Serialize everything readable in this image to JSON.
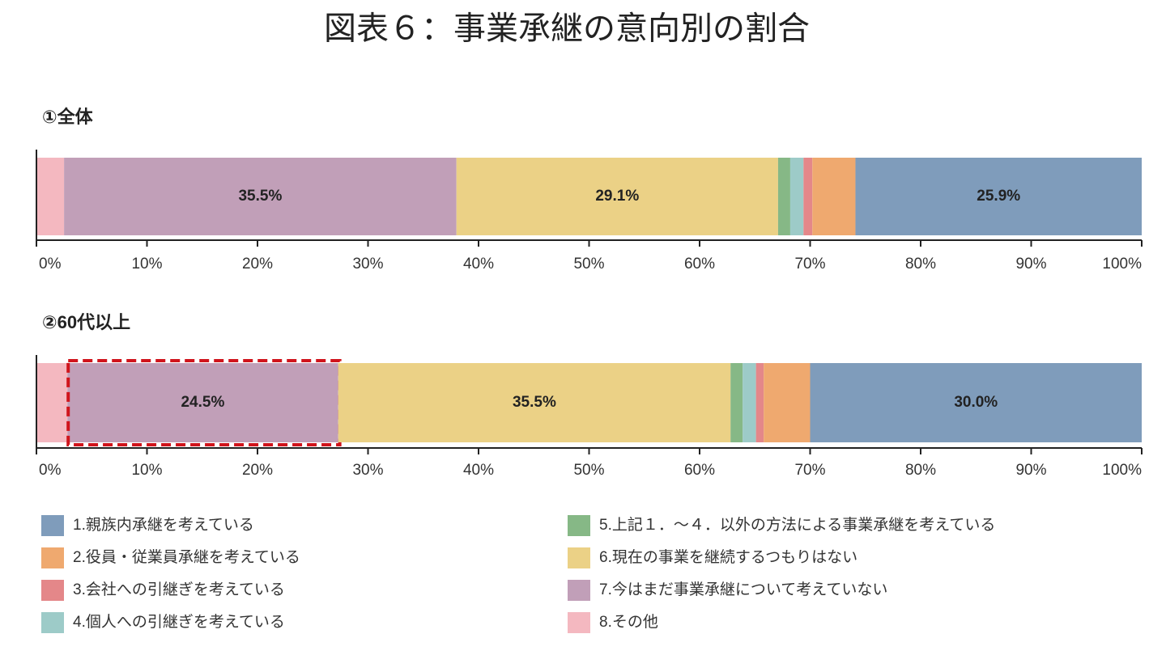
{
  "chart_data": {
    "type": "stacked-bar-horizontal",
    "title": "図表６：事業承継の意向別の割合",
    "categories": [
      "①全体",
      "②60代以上"
    ],
    "series": [
      {
        "name": "1.親族内承継を考えている",
        "color": "#7f9cbb",
        "values": [
          25.9,
          30.0
        ],
        "value_labels": [
          "25.9%",
          "30.0%"
        ]
      },
      {
        "name": "2.役員・従業員承継を考えている",
        "color": "#efa96f",
        "values": [
          3.9,
          4.2
        ]
      },
      {
        "name": "3.会社への引継ぎを考えている",
        "color": "#e48789",
        "values": [
          0.8,
          0.7
        ]
      },
      {
        "name": "4.個人への引継ぎを考えている",
        "color": "#9dcbc8",
        "values": [
          1.2,
          1.2
        ]
      },
      {
        "name": "5.上記１．～４．以外の方法による事業承継を考えている",
        "color": "#86b886",
        "values": [
          1.1,
          1.1
        ]
      },
      {
        "name": "6.現在の事業を継続するつもりはない",
        "color": "#ebd186",
        "values": [
          29.1,
          35.5
        ],
        "value_labels": [
          "29.1%",
          "35.5%"
        ]
      },
      {
        "name": "7.今はまだ事業承継について考えていない",
        "color": "#c19fb8",
        "values": [
          35.5,
          24.5
        ],
        "value_labels": [
          "35.5%",
          "24.5%"
        ]
      },
      {
        "name": "8.その他",
        "color": "#f4b8c0",
        "values": [
          2.5,
          2.8
        ]
      }
    ],
    "xlim": [
      0,
      100
    ],
    "xticks": [
      {
        "value": 0,
        "label": "0%"
      },
      {
        "value": 10,
        "label": "10%"
      },
      {
        "value": 20,
        "label": "20%"
      },
      {
        "value": 30,
        "label": "30%"
      },
      {
        "value": 40,
        "label": "40%"
      },
      {
        "value": 50,
        "label": "50%"
      },
      {
        "value": 60,
        "label": "60%"
      },
      {
        "value": 70,
        "label": "70%"
      },
      {
        "value": 80,
        "label": "80%"
      },
      {
        "value": 90,
        "label": "90%"
      },
      {
        "value": 100,
        "label": "100%"
      }
    ]
  }
}
